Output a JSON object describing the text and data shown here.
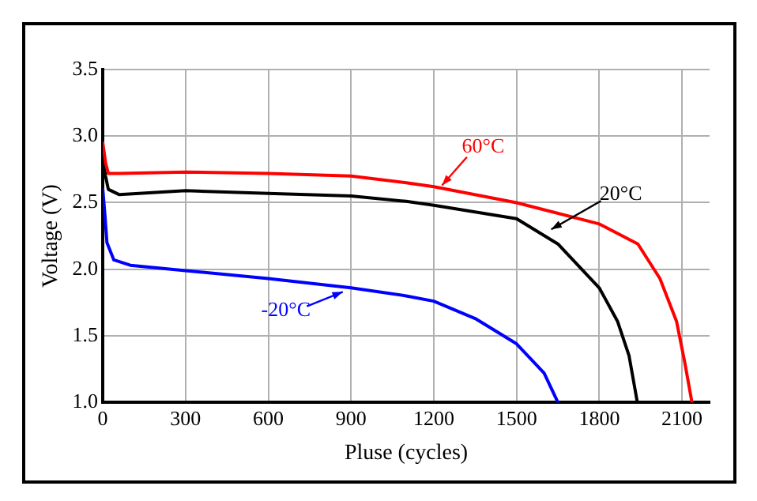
{
  "chart_data": {
    "type": "line",
    "xlabel": "Pluse (cycles)",
    "ylabel": "Voltage (V)",
    "xlim": [
      0,
      2200
    ],
    "xticks": [
      0,
      300,
      600,
      900,
      1200,
      1500,
      1800,
      2100
    ],
    "ylim": [
      1.0,
      3.5
    ],
    "yticks": [
      {
        "value": 1.0,
        "label": "1.0"
      },
      {
        "value": 1.5,
        "label": "1.5"
      },
      {
        "value": 2.0,
        "label": "2.0"
      },
      {
        "value": 2.5,
        "label": "2.5"
      },
      {
        "value": 3.0,
        "label": "3.0"
      },
      {
        "value": 3.5,
        "label": "3.5"
      }
    ],
    "grid": true,
    "legend": false,
    "marker": "none",
    "line_style": "solid",
    "series": [
      {
        "color": "#ff0000",
        "x": [
          0,
          10,
          20,
          60,
          300,
          600,
          900,
          1100,
          1200,
          1500,
          1800,
          1940,
          2020,
          2080,
          2110,
          2136
        ],
        "values": [
          2.95,
          2.8,
          2.72,
          2.72,
          2.73,
          2.72,
          2.7,
          2.65,
          2.62,
          2.5,
          2.34,
          2.19,
          1.93,
          1.61,
          1.3,
          1.0
        ]
      },
      {
        "color": "#000000",
        "x": [
          0,
          10,
          20,
          60,
          300,
          600,
          900,
          1100,
          1200,
          1500,
          1650,
          1800,
          1866,
          1908,
          1938
        ],
        "values": [
          2.85,
          2.7,
          2.6,
          2.56,
          2.59,
          2.57,
          2.55,
          2.51,
          2.48,
          2.38,
          2.19,
          1.86,
          1.61,
          1.35,
          1.0
        ]
      },
      {
        "color": "#0000ff",
        "x": [
          0,
          8,
          15,
          40,
          100,
          300,
          600,
          900,
          1100,
          1200,
          1350,
          1500,
          1600,
          1650
        ],
        "values": [
          2.6,
          2.4,
          2.2,
          2.07,
          2.03,
          1.99,
          1.93,
          1.86,
          1.8,
          1.76,
          1.63,
          1.44,
          1.22,
          1.0
        ]
      }
    ],
    "annotations": [
      {
        "text": "60°C",
        "x": 1230,
        "y": 2.63
      },
      {
        "text": "20°C",
        "x": 1626,
        "y": 2.3
      },
      {
        "text": "-20°C",
        "x": 870,
        "y": 1.83
      }
    ]
  }
}
